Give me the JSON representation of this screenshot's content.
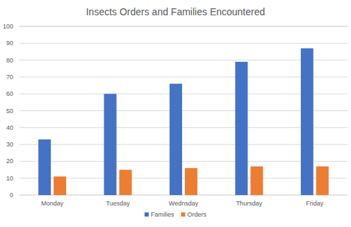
{
  "chart_data": {
    "type": "bar",
    "title": "Insects Orders and Families Encountered",
    "categories": [
      "Monday",
      "Tuesday",
      "Wednsday",
      "Thursday",
      "Friday"
    ],
    "series": [
      {
        "name": "Families",
        "color": "#4472c4",
        "values": [
          33,
          60,
          66,
          79,
          87
        ]
      },
      {
        "name": "Orders",
        "color": "#ed7d31",
        "values": [
          11,
          15,
          16,
          17,
          17
        ]
      }
    ],
    "ylim": [
      0,
      100
    ],
    "yticks": [
      0,
      10,
      20,
      30,
      40,
      50,
      60,
      70,
      80,
      90,
      100
    ],
    "grid": true,
    "legend": "bottom"
  }
}
